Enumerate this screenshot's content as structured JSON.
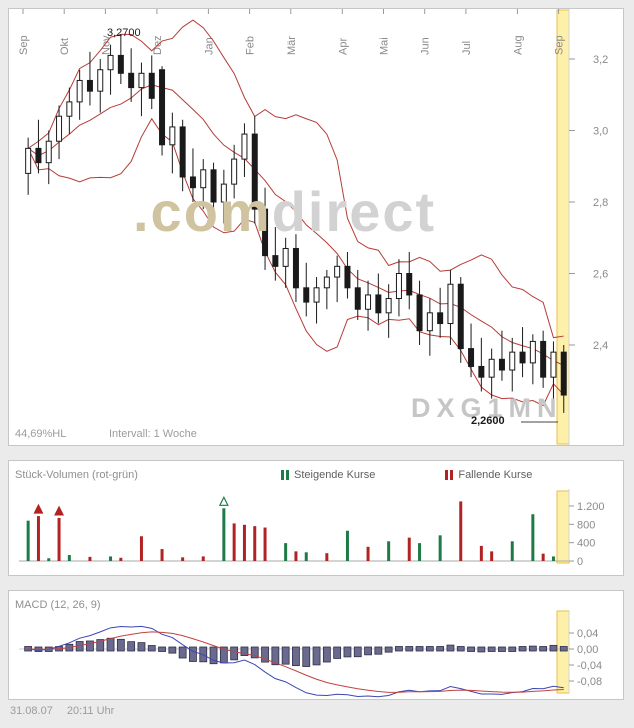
{
  "colors": {
    "up_green": "#1e7a46",
    "down_red": "#b22222",
    "band_red": "#b73b37",
    "candle_black": "#1a1a1a",
    "macd_blue": "#3c46b4",
    "signal_red": "#c04343",
    "hist_fill": "#6a6a8e",
    "hist_stroke": "#2f2f4a",
    "highlight_fill": "#fdf0a8",
    "highlight_stroke": "#eebd4a",
    "axis_text": "#8a8a8a"
  },
  "main_panel": {
    "hl_text": "44,69%HL",
    "interval_text": "Intervall: 1 Woche",
    "watermark_com": ".com",
    "watermark_direct": "direct",
    "watermark_symbol": "DXG1MN"
  },
  "footer": {
    "date": "31.08.07",
    "time": "20:11 Uhr"
  },
  "chart_data": [
    {
      "type": "candlestick",
      "interval": "1 Woche",
      "months": [
        "Sep",
        "Okt",
        "Nov",
        "Dez",
        "Jan",
        "Feb",
        "Mär",
        "Apr",
        "Mai",
        "Jun",
        "Jul",
        "Aug",
        "Sep"
      ],
      "month_week_index": [
        0,
        4,
        8,
        13,
        18,
        22,
        26,
        31,
        35,
        39,
        43,
        48,
        52
      ],
      "price_ticks": {
        "values": [
          3.2,
          3.0,
          2.8,
          2.6,
          2.4
        ],
        "labels": [
          "3,2",
          "3,0",
          "2,8",
          "2,6",
          "2,4"
        ]
      },
      "ylim": [
        2.13,
        3.31
      ],
      "bollinger": {
        "window": 10,
        "mult": 2
      },
      "annotations": [
        {
          "text": "3,2700",
          "week": 9,
          "price": 3.27
        },
        {
          "text": "2,2600",
          "week": 52,
          "price": 2.26
        }
      ],
      "candles_ohlc": [
        [
          2.88,
          2.98,
          2.82,
          2.95
        ],
        [
          2.95,
          3.03,
          2.88,
          2.91
        ],
        [
          2.91,
          3.0,
          2.85,
          2.97
        ],
        [
          2.97,
          3.07,
          2.92,
          3.04
        ],
        [
          3.04,
          3.12,
          2.99,
          3.08
        ],
        [
          3.08,
          3.17,
          3.03,
          3.14
        ],
        [
          3.14,
          3.22,
          3.07,
          3.11
        ],
        [
          3.11,
          3.2,
          3.05,
          3.17
        ],
        [
          3.17,
          3.24,
          3.1,
          3.21
        ],
        [
          3.21,
          3.27,
          3.13,
          3.16
        ],
        [
          3.16,
          3.23,
          3.08,
          3.12
        ],
        [
          3.12,
          3.19,
          3.04,
          3.16
        ],
        [
          3.16,
          3.21,
          3.06,
          3.09
        ],
        [
          3.17,
          3.18,
          2.93,
          2.96
        ],
        [
          2.96,
          3.05,
          2.88,
          3.01
        ],
        [
          3.01,
          3.03,
          2.83,
          2.87
        ],
        [
          2.87,
          2.95,
          2.8,
          2.84
        ],
        [
          2.84,
          2.92,
          2.78,
          2.89
        ],
        [
          2.89,
          2.91,
          2.76,
          2.8
        ],
        [
          2.8,
          2.89,
          2.74,
          2.85
        ],
        [
          2.85,
          2.96,
          2.81,
          2.92
        ],
        [
          2.92,
          3.02,
          2.87,
          2.99
        ],
        [
          2.99,
          3.04,
          2.74,
          2.78
        ],
        [
          2.78,
          2.84,
          2.61,
          2.65
        ],
        [
          2.65,
          2.73,
          2.58,
          2.62
        ],
        [
          2.62,
          2.7,
          2.56,
          2.67
        ],
        [
          2.67,
          2.71,
          2.52,
          2.56
        ],
        [
          2.56,
          2.63,
          2.48,
          2.52
        ],
        [
          2.52,
          2.59,
          2.46,
          2.56
        ],
        [
          2.56,
          2.61,
          2.5,
          2.59
        ],
        [
          2.59,
          2.65,
          2.52,
          2.62
        ],
        [
          2.62,
          2.66,
          2.53,
          2.56
        ],
        [
          2.56,
          2.61,
          2.47,
          2.5
        ],
        [
          2.5,
          2.58,
          2.44,
          2.54
        ],
        [
          2.54,
          2.6,
          2.46,
          2.49
        ],
        [
          2.49,
          2.57,
          2.42,
          2.53
        ],
        [
          2.53,
          2.64,
          2.48,
          2.6
        ],
        [
          2.6,
          2.66,
          2.5,
          2.54
        ],
        [
          2.54,
          2.58,
          2.4,
          2.44
        ],
        [
          2.44,
          2.53,
          2.37,
          2.49
        ],
        [
          2.49,
          2.56,
          2.42,
          2.46
        ],
        [
          2.46,
          2.61,
          2.4,
          2.57
        ],
        [
          2.57,
          2.59,
          2.35,
          2.39
        ],
        [
          2.39,
          2.46,
          2.31,
          2.34
        ],
        [
          2.34,
          2.42,
          2.27,
          2.31
        ],
        [
          2.31,
          2.39,
          2.25,
          2.36
        ],
        [
          2.36,
          2.44,
          2.3,
          2.33
        ],
        [
          2.33,
          2.42,
          2.27,
          2.38
        ],
        [
          2.38,
          2.45,
          2.31,
          2.35
        ],
        [
          2.35,
          2.43,
          2.29,
          2.41
        ],
        [
          2.41,
          2.44,
          2.28,
          2.31
        ],
        [
          2.31,
          2.41,
          2.25,
          2.38
        ],
        [
          2.38,
          2.4,
          2.21,
          2.26
        ]
      ]
    },
    {
      "type": "bar",
      "title": "Stück-Volumen (rot-grün)",
      "legend": [
        {
          "label": "Steigende Kurse",
          "key": "g"
        },
        {
          "label": "Fallende Kurse",
          "key": "r"
        }
      ],
      "yticks": {
        "values": [
          1200,
          800,
          400,
          0
        ],
        "labels": [
          "1.200",
          "800",
          "400",
          "0"
        ]
      },
      "ylim": [
        0,
        1300
      ],
      "values": [
        880,
        980,
        60,
        940,
        130,
        0,
        90,
        0,
        100,
        70,
        0,
        540,
        0,
        260,
        0,
        80,
        0,
        100,
        0,
        1150,
        820,
        790,
        760,
        730,
        0,
        390,
        210,
        190,
        0,
        170,
        0,
        660,
        0,
        310,
        0,
        430,
        0,
        510,
        390,
        0,
        560,
        0,
        1300,
        0,
        330,
        210,
        0,
        430,
        0,
        1020,
        160,
        100,
        0
      ],
      "bar_colors": [
        "g",
        "r",
        "g",
        "r",
        "g",
        null,
        "r",
        null,
        "g",
        "r",
        null,
        "r",
        null,
        "r",
        null,
        "r",
        null,
        "r",
        null,
        "g",
        "r",
        "r",
        "r",
        "r",
        null,
        "g",
        "r",
        "g",
        null,
        "r",
        null,
        "g",
        null,
        "r",
        null,
        "g",
        null,
        "r",
        "g",
        null,
        "g",
        null,
        "r",
        null,
        "r",
        "r",
        null,
        "g",
        null,
        "g",
        "r",
        "g",
        null
      ],
      "markers": [
        {
          "week": 1,
          "key": "r"
        },
        {
          "week": 3,
          "key": "r"
        },
        {
          "week": 19,
          "key": "g"
        }
      ]
    },
    {
      "type": "line",
      "title": "MACD (12, 26, 9)",
      "params": [
        12,
        26,
        9
      ],
      "yticks": {
        "values": [
          0.04,
          0,
          -0.04,
          -0.08
        ],
        "labels": [
          "0,04",
          "0,00",
          "-0,04",
          "-0,08"
        ]
      },
      "ylim": [
        -0.1,
        0.06
      ]
    }
  ]
}
